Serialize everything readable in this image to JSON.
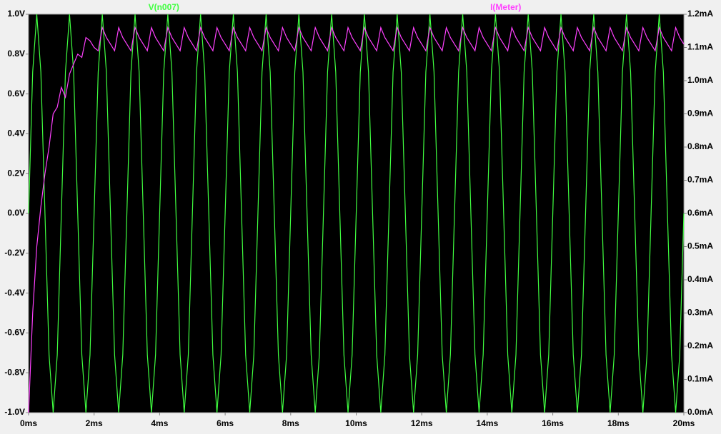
{
  "chart_data": {
    "type": "line",
    "x": [
      0,
      0.125,
      0.25,
      0.375,
      0.5,
      0.625,
      0.75,
      0.875,
      1,
      1.125,
      1.25,
      1.375,
      1.5,
      1.625,
      1.75,
      1.875,
      2,
      2.125,
      2.25,
      2.375,
      2.5,
      2.625,
      2.75,
      2.875,
      3,
      3.125,
      3.25,
      3.375,
      3.5,
      3.625,
      3.75,
      3.875,
      4,
      4.125,
      4.25,
      4.375,
      4.5,
      4.625,
      4.75,
      4.875,
      5,
      5.125,
      5.25,
      5.375,
      5.5,
      5.625,
      5.75,
      5.875,
      6,
      6.125,
      6.25,
      6.375,
      6.5,
      6.625,
      6.75,
      6.875,
      7,
      7.125,
      7.25,
      7.375,
      7.5,
      7.625,
      7.75,
      7.875,
      8,
      8.125,
      8.25,
      8.375,
      8.5,
      8.625,
      8.75,
      8.875,
      9,
      9.125,
      9.25,
      9.375,
      9.5,
      9.625,
      9.75,
      9.875,
      10,
      10.125,
      10.25,
      10.375,
      10.5,
      10.625,
      10.75,
      10.875,
      11,
      11.125,
      11.25,
      11.375,
      11.5,
      11.625,
      11.75,
      11.875,
      12,
      12.125,
      12.25,
      12.375,
      12.5,
      12.625,
      12.75,
      12.875,
      13,
      13.125,
      13.25,
      13.375,
      13.5,
      13.625,
      13.75,
      13.875,
      14,
      14.125,
      14.25,
      14.375,
      14.5,
      14.625,
      14.75,
      14.875,
      15,
      15.125,
      15.25,
      15.375,
      15.5,
      15.625,
      15.75,
      15.875,
      16,
      16.125,
      16.25,
      16.375,
      16.5,
      16.625,
      16.75,
      16.875,
      17,
      17.125,
      17.25,
      17.375,
      17.5,
      17.625,
      17.75,
      17.875,
      18,
      18.125,
      18.25,
      18.375,
      18.5,
      18.625,
      18.75,
      18.875,
      19,
      19.125,
      19.25,
      19.375,
      19.5,
      19.625,
      19.75,
      19.875,
      20
    ],
    "series": [
      {
        "name": "V(n007)",
        "color": "#40ff40",
        "axis": "y",
        "values": [
          0,
          0.71,
          1,
          0.71,
          0,
          -0.71,
          -1,
          -0.71,
          0,
          0.71,
          1,
          0.71,
          0,
          -0.71,
          -1,
          -0.71,
          0,
          0.71,
          1,
          0.71,
          0,
          -0.71,
          -1,
          -0.71,
          0,
          0.71,
          1,
          0.71,
          0,
          -0.71,
          -1,
          -0.71,
          0,
          0.71,
          1,
          0.71,
          0,
          -0.71,
          -1,
          -0.71,
          0,
          0.71,
          1,
          0.71,
          0,
          -0.71,
          -1,
          -0.71,
          0,
          0.71,
          1,
          0.71,
          0,
          -0.71,
          -1,
          -0.71,
          0,
          0.71,
          1,
          0.71,
          0,
          -0.71,
          -1,
          -0.71,
          0,
          0.71,
          1,
          0.71,
          0,
          -0.71,
          -1,
          -0.71,
          0,
          0.71,
          1,
          0.71,
          0,
          -0.71,
          -1,
          -0.71,
          0,
          0.71,
          1,
          0.71,
          0,
          -0.71,
          -1,
          -0.71,
          0,
          0.71,
          1,
          0.71,
          0,
          -0.71,
          -1,
          -0.71,
          0,
          0.71,
          1,
          0.71,
          0,
          -0.71,
          -1,
          -0.71,
          0,
          0.71,
          1,
          0.71,
          0,
          -0.71,
          -1,
          -0.71,
          0,
          0.71,
          1,
          0.71,
          0,
          -0.71,
          -1,
          -0.71,
          0,
          0.71,
          1,
          0.71,
          0,
          -0.71,
          -1,
          -0.71,
          0,
          0.71,
          1,
          0.71,
          0,
          -0.71,
          -1,
          -0.71,
          0,
          0.71,
          1,
          0.71,
          0,
          -0.71,
          -1,
          -0.71,
          0,
          0.71,
          1,
          0.71,
          0,
          -0.71,
          -1,
          -0.71,
          0,
          0.71,
          1,
          0.71,
          0,
          -0.71,
          -1,
          -0.71,
          0
        ]
      },
      {
        "name": "I(Meter)",
        "color": "#ff40ff",
        "axis": "y2",
        "values": [
          0,
          0.3,
          0.5,
          0.62,
          0.72,
          0.8,
          0.9,
          0.92,
          0.98,
          0.95,
          1.02,
          1.05,
          1.08,
          1.07,
          1.13,
          1.12,
          1.1,
          1.09,
          1.16,
          1.13,
          1.11,
          1.09,
          1.16,
          1.13,
          1.11,
          1.09,
          1.16,
          1.13,
          1.11,
          1.09,
          1.16,
          1.13,
          1.11,
          1.09,
          1.16,
          1.13,
          1.11,
          1.09,
          1.16,
          1.13,
          1.11,
          1.09,
          1.16,
          1.13,
          1.11,
          1.09,
          1.16,
          1.13,
          1.11,
          1.09,
          1.16,
          1.13,
          1.11,
          1.09,
          1.16,
          1.13,
          1.11,
          1.09,
          1.16,
          1.13,
          1.11,
          1.09,
          1.16,
          1.13,
          1.11,
          1.09,
          1.16,
          1.13,
          1.11,
          1.09,
          1.16,
          1.13,
          1.11,
          1.09,
          1.16,
          1.13,
          1.11,
          1.09,
          1.16,
          1.13,
          1.11,
          1.09,
          1.16,
          1.13,
          1.11,
          1.09,
          1.16,
          1.13,
          1.11,
          1.09,
          1.16,
          1.13,
          1.11,
          1.09,
          1.16,
          1.13,
          1.11,
          1.09,
          1.16,
          1.13,
          1.11,
          1.09,
          1.16,
          1.13,
          1.11,
          1.09,
          1.16,
          1.13,
          1.11,
          1.09,
          1.16,
          1.13,
          1.11,
          1.09,
          1.16,
          1.13,
          1.11,
          1.09,
          1.16,
          1.13,
          1.11,
          1.09,
          1.16,
          1.13,
          1.11,
          1.09,
          1.16,
          1.13,
          1.11,
          1.09,
          1.16,
          1.13,
          1.11,
          1.09,
          1.16,
          1.13,
          1.11,
          1.09,
          1.16,
          1.13,
          1.11,
          1.09,
          1.16,
          1.13,
          1.11,
          1.09,
          1.16,
          1.13,
          1.11,
          1.09,
          1.16,
          1.13,
          1.11,
          1.09,
          1.16,
          1.13,
          1.11,
          1.09,
          1.16,
          1.13,
          1.11
        ]
      }
    ],
    "xlim": [
      0,
      20
    ],
    "xticks": [
      {
        "value": 0,
        "label": "0ms"
      },
      {
        "value": 2,
        "label": "2ms"
      },
      {
        "value": 4,
        "label": "4ms"
      },
      {
        "value": 6,
        "label": "6ms"
      },
      {
        "value": 8,
        "label": "8ms"
      },
      {
        "value": 10,
        "label": "10ms"
      },
      {
        "value": 12,
        "label": "12ms"
      },
      {
        "value": 14,
        "label": "14ms"
      },
      {
        "value": 16,
        "label": "16ms"
      },
      {
        "value": 18,
        "label": "18ms"
      },
      {
        "value": 20,
        "label": "20ms"
      }
    ],
    "ylim": [
      -1,
      1
    ],
    "yticks": [
      {
        "value": -1,
        "label": "-1.0V"
      },
      {
        "value": -0.8,
        "label": "-0.8V"
      },
      {
        "value": -0.6,
        "label": "-0.6V"
      },
      {
        "value": -0.4,
        "label": "-0.4V"
      },
      {
        "value": -0.2,
        "label": "-0.2V"
      },
      {
        "value": 0,
        "label": "0.0V"
      },
      {
        "value": 0.2,
        "label": "0.2V"
      },
      {
        "value": 0.4,
        "label": "0.4V"
      },
      {
        "value": 0.6,
        "label": "0.6V"
      },
      {
        "value": 0.8,
        "label": "0.8V"
      },
      {
        "value": 1,
        "label": "1.0V"
      }
    ],
    "y2lim": [
      0,
      1.2
    ],
    "y2ticks": [
      {
        "value": 0,
        "label": "0.0mA"
      },
      {
        "value": 0.1,
        "label": "0.1mA"
      },
      {
        "value": 0.2,
        "label": "0.2mA"
      },
      {
        "value": 0.3,
        "label": "0.3mA"
      },
      {
        "value": 0.4,
        "label": "0.4mA"
      },
      {
        "value": 0.5,
        "label": "0.5mA"
      },
      {
        "value": 0.6,
        "label": "0.6mA"
      },
      {
        "value": 0.7,
        "label": "0.7mA"
      },
      {
        "value": 0.8,
        "label": "0.8mA"
      },
      {
        "value": 0.9,
        "label": "0.9mA"
      },
      {
        "value": 1,
        "label": "1.0mA"
      },
      {
        "value": 1.1,
        "label": "1.1mA"
      },
      {
        "value": 1.2,
        "label": "1.2mA"
      }
    ],
    "grid": false
  }
}
